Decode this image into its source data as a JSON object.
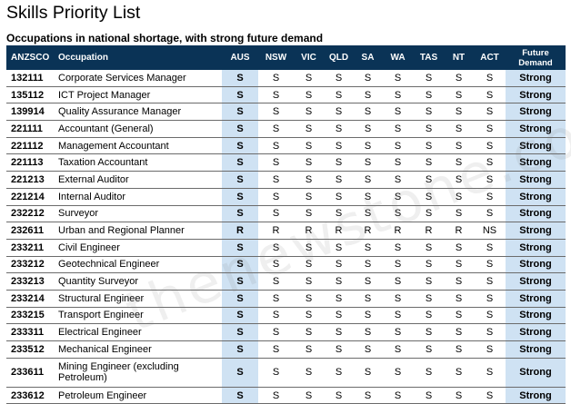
{
  "document": {
    "title": "Skills Priority List",
    "subtitle": "Occupations in national shortage, with strong future demand"
  },
  "table": {
    "headers": [
      "ANZSCO",
      "Occupation",
      "AUS",
      "NSW",
      "VIC",
      "QLD",
      "SA",
      "WA",
      "TAS",
      "NT",
      "ACT",
      "Future Demand"
    ],
    "rows": [
      {
        "code": "132111",
        "occupation": "Corporate Services Manager",
        "ratings": [
          "S",
          "S",
          "S",
          "S",
          "S",
          "S",
          "S",
          "S",
          "S"
        ],
        "future": "Strong"
      },
      {
        "code": "135112",
        "occupation": "ICT Project Manager",
        "ratings": [
          "S",
          "S",
          "S",
          "S",
          "S",
          "S",
          "S",
          "S",
          "S"
        ],
        "future": "Strong"
      },
      {
        "code": "139914",
        "occupation": "Quality Assurance Manager",
        "ratings": [
          "S",
          "S",
          "S",
          "S",
          "S",
          "S",
          "S",
          "S",
          "S"
        ],
        "future": "Strong"
      },
      {
        "code": "221111",
        "occupation": "Accountant (General)",
        "ratings": [
          "S",
          "S",
          "S",
          "S",
          "S",
          "S",
          "S",
          "S",
          "S"
        ],
        "future": "Strong"
      },
      {
        "code": "221112",
        "occupation": "Management Accountant",
        "ratings": [
          "S",
          "S",
          "S",
          "S",
          "S",
          "S",
          "S",
          "S",
          "S"
        ],
        "future": "Strong"
      },
      {
        "code": "221113",
        "occupation": "Taxation Accountant",
        "ratings": [
          "S",
          "S",
          "S",
          "S",
          "S",
          "S",
          "S",
          "S",
          "S"
        ],
        "future": "Strong"
      },
      {
        "code": "221213",
        "occupation": "External Auditor",
        "ratings": [
          "S",
          "S",
          "S",
          "S",
          "S",
          "S",
          "S",
          "S",
          "S"
        ],
        "future": "Strong"
      },
      {
        "code": "221214",
        "occupation": "Internal Auditor",
        "ratings": [
          "S",
          "S",
          "S",
          "S",
          "S",
          "S",
          "S",
          "S",
          "S"
        ],
        "future": "Strong"
      },
      {
        "code": "232212",
        "occupation": "Surveyor",
        "ratings": [
          "S",
          "S",
          "S",
          "S",
          "S",
          "S",
          "S",
          "S",
          "S"
        ],
        "future": "Strong"
      },
      {
        "code": "232611",
        "occupation": "Urban and Regional Planner",
        "ratings": [
          "R",
          "R",
          "R",
          "R",
          "R",
          "R",
          "R",
          "R",
          "NS"
        ],
        "future": "Strong"
      },
      {
        "code": "233211",
        "occupation": "Civil Engineer",
        "ratings": [
          "S",
          "S",
          "S",
          "S",
          "S",
          "S",
          "S",
          "S",
          "S"
        ],
        "future": "Strong"
      },
      {
        "code": "233212",
        "occupation": "Geotechnical Engineer",
        "ratings": [
          "S",
          "S",
          "S",
          "S",
          "S",
          "S",
          "S",
          "S",
          "S"
        ],
        "future": "Strong"
      },
      {
        "code": "233213",
        "occupation": "Quantity Surveyor",
        "ratings": [
          "S",
          "S",
          "S",
          "S",
          "S",
          "S",
          "S",
          "S",
          "S"
        ],
        "future": "Strong"
      },
      {
        "code": "233214",
        "occupation": "Structural Engineer",
        "ratings": [
          "S",
          "S",
          "S",
          "S",
          "S",
          "S",
          "S",
          "S",
          "S"
        ],
        "future": "Strong"
      },
      {
        "code": "233215",
        "occupation": "Transport Engineer",
        "ratings": [
          "S",
          "S",
          "S",
          "S",
          "S",
          "S",
          "S",
          "S",
          "S"
        ],
        "future": "Strong"
      },
      {
        "code": "233311",
        "occupation": "Electrical Engineer",
        "ratings": [
          "S",
          "S",
          "S",
          "S",
          "S",
          "S",
          "S",
          "S",
          "S"
        ],
        "future": "Strong"
      },
      {
        "code": "233512",
        "occupation": "Mechanical Engineer",
        "ratings": [
          "S",
          "S",
          "S",
          "S",
          "S",
          "S",
          "S",
          "S",
          "S"
        ],
        "future": "Strong"
      },
      {
        "code": "233611",
        "occupation": "Mining Engineer (excluding Petroleum)",
        "ratings": [
          "S",
          "S",
          "S",
          "S",
          "S",
          "S",
          "S",
          "S",
          "S"
        ],
        "future": "Strong"
      },
      {
        "code": "233612",
        "occupation": "Petroleum Engineer",
        "ratings": [
          "S",
          "S",
          "S",
          "S",
          "S",
          "S",
          "S",
          "S",
          "S"
        ],
        "future": "Strong"
      }
    ]
  },
  "watermark": {
    "text": "thenewstone.com"
  },
  "colors": {
    "header_bg": "#0a3356",
    "highlight_col": "#cfe2f3"
  }
}
